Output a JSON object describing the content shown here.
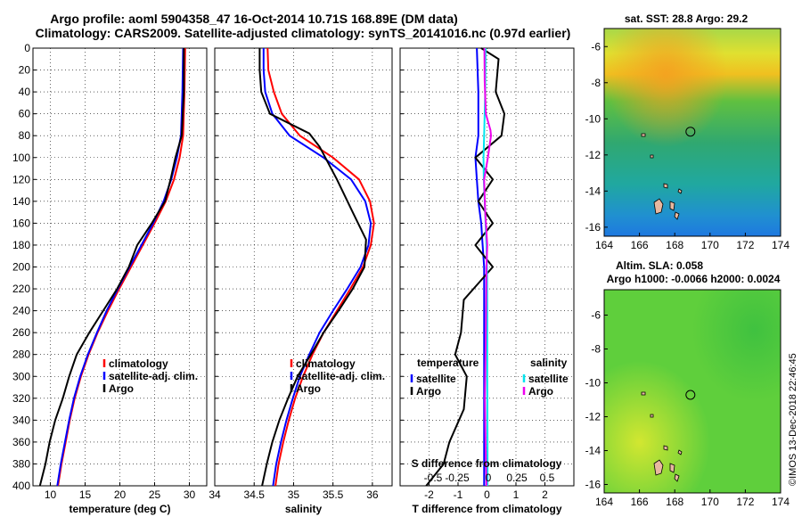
{
  "header": {
    "line1": "Argo profile: aoml 5904358_47 16-Oct-2014 10.71S 168.89E (DM data)",
    "line2": "Climatology: CARS2009. Satellite-adjusted climatology: synTS_20141016.nc (0.97d earlier)"
  },
  "credit": "©IMOS 13-Dec-2018 22:46:45",
  "colors": {
    "climatology": "#ff0000",
    "satellite": "#0000ff",
    "argo": "#000000",
    "salinity_satellite": "#00e5ee",
    "salinity_argo": "#ee00ee"
  },
  "chart_data": [
    {
      "id": "temperature",
      "type": "line",
      "xlabel": "temperature (deg C)",
      "xlim": [
        7.5,
        32.5
      ],
      "xticks": [
        10,
        15,
        20,
        25,
        30
      ],
      "ylabel": "depth",
      "ylim": [
        0,
        400
      ],
      "yticks": [
        0,
        20,
        40,
        60,
        80,
        100,
        120,
        140,
        160,
        180,
        200,
        220,
        240,
        260,
        280,
        300,
        320,
        340,
        360,
        380,
        400
      ],
      "legend": [
        "climatology",
        "satellite-adj. clim.",
        "Argo"
      ],
      "series": [
        {
          "name": "climatology",
          "color": "#ff0000",
          "points": [
            [
              29.4,
              0
            ],
            [
              29.3,
              40
            ],
            [
              29.1,
              80
            ],
            [
              28.6,
              100
            ],
            [
              27.8,
              120
            ],
            [
              26.6,
              140
            ],
            [
              25.0,
              160
            ],
            [
              23.3,
              180
            ],
            [
              21.6,
              200
            ],
            [
              19.9,
              220
            ],
            [
              18.3,
              240
            ],
            [
              16.8,
              260
            ],
            [
              15.5,
              280
            ],
            [
              14.4,
              300
            ],
            [
              13.5,
              320
            ],
            [
              12.8,
              340
            ],
            [
              12.2,
              360
            ],
            [
              11.6,
              380
            ],
            [
              11.1,
              400
            ]
          ]
        },
        {
          "name": "satellite-adj. clim.",
          "color": "#0000ff",
          "points": [
            [
              29.1,
              0
            ],
            [
              29.0,
              40
            ],
            [
              28.8,
              80
            ],
            [
              28.2,
              100
            ],
            [
              27.4,
              120
            ],
            [
              26.3,
              140
            ],
            [
              24.8,
              160
            ],
            [
              23.1,
              180
            ],
            [
              21.4,
              200
            ],
            [
              19.7,
              220
            ],
            [
              18.1,
              240
            ],
            [
              16.7,
              260
            ],
            [
              15.4,
              280
            ],
            [
              14.3,
              300
            ],
            [
              13.4,
              320
            ],
            [
              12.7,
              340
            ],
            [
              12.1,
              360
            ],
            [
              11.5,
              380
            ],
            [
              11.0,
              400
            ]
          ]
        },
        {
          "name": "Argo",
          "color": "#000000",
          "points": [
            [
              29.2,
              0
            ],
            [
              29.2,
              40
            ],
            [
              28.9,
              80
            ],
            [
              28.0,
              100
            ],
            [
              27.3,
              120
            ],
            [
              26.5,
              140
            ],
            [
              24.6,
              160
            ],
            [
              22.5,
              180
            ],
            [
              21.3,
              200
            ],
            [
              19.6,
              220
            ],
            [
              17.6,
              240
            ],
            [
              15.6,
              260
            ],
            [
              13.8,
              280
            ],
            [
              12.7,
              300
            ],
            [
              11.8,
              320
            ],
            [
              10.7,
              340
            ],
            [
              9.9,
              360
            ],
            [
              9.3,
              380
            ],
            [
              8.5,
              400
            ]
          ]
        }
      ]
    },
    {
      "id": "salinity",
      "type": "line",
      "xlabel": "salinity",
      "xlim": [
        34.0,
        36.25
      ],
      "xticks": [
        34,
        34.5,
        35,
        35.5,
        36
      ],
      "ylim": [
        0,
        400
      ],
      "legend": [
        "climatology",
        "satellite-adj. clim.",
        "Argo"
      ],
      "series": [
        {
          "name": "climatology",
          "color": "#ff0000",
          "points": [
            [
              34.67,
              0
            ],
            [
              34.68,
              20
            ],
            [
              34.75,
              40
            ],
            [
              34.85,
              60
            ],
            [
              35.08,
              80
            ],
            [
              35.5,
              100
            ],
            [
              35.83,
              120
            ],
            [
              35.97,
              140
            ],
            [
              36.02,
              160
            ],
            [
              35.98,
              180
            ],
            [
              35.88,
              200
            ],
            [
              35.72,
              220
            ],
            [
              35.55,
              240
            ],
            [
              35.38,
              260
            ],
            [
              35.24,
              280
            ],
            [
              35.12,
              300
            ],
            [
              35.02,
              320
            ],
            [
              34.94,
              340
            ],
            [
              34.87,
              360
            ],
            [
              34.81,
              380
            ],
            [
              34.77,
              400
            ]
          ]
        },
        {
          "name": "satellite-adj. clim.",
          "color": "#0000ff",
          "points": [
            [
              34.62,
              0
            ],
            [
              34.62,
              20
            ],
            [
              34.64,
              40
            ],
            [
              34.73,
              60
            ],
            [
              34.95,
              80
            ],
            [
              35.38,
              100
            ],
            [
              35.73,
              120
            ],
            [
              35.91,
              140
            ],
            [
              35.98,
              160
            ],
            [
              35.95,
              180
            ],
            [
              35.85,
              200
            ],
            [
              35.68,
              220
            ],
            [
              35.5,
              240
            ],
            [
              35.33,
              260
            ],
            [
              35.2,
              280
            ],
            [
              35.08,
              300
            ],
            [
              34.99,
              320
            ],
            [
              34.91,
              340
            ],
            [
              34.84,
              360
            ],
            [
              34.78,
              380
            ],
            [
              34.74,
              400
            ]
          ]
        },
        {
          "name": "Argo",
          "color": "#000000",
          "points": [
            [
              34.57,
              0
            ],
            [
              34.57,
              20
            ],
            [
              34.59,
              40
            ],
            [
              34.7,
              60
            ],
            [
              35.2,
              78
            ],
            [
              35.33,
              90
            ],
            [
              35.55,
              120
            ],
            [
              35.75,
              150
            ],
            [
              35.92,
              175
            ],
            [
              35.9,
              200
            ],
            [
              35.75,
              220
            ],
            [
              35.57,
              240
            ],
            [
              35.38,
              260
            ],
            [
              35.22,
              280
            ],
            [
              35.05,
              300
            ],
            [
              34.93,
              320
            ],
            [
              34.82,
              340
            ],
            [
              34.73,
              360
            ],
            [
              34.66,
              380
            ],
            [
              34.6,
              400
            ]
          ]
        }
      ]
    },
    {
      "id": "difference",
      "type": "line",
      "xlabel": "T difference from climatology",
      "xlim": [
        -3,
        3
      ],
      "xticks": [
        -2,
        -1,
        0,
        1,
        2
      ],
      "xlabel_top": "S difference from climatology",
      "xticks_top": [
        "-0.5",
        "-0.25",
        "0",
        "0.25",
        "0.5"
      ],
      "ylim": [
        0,
        400
      ],
      "legend_temperature_title": "temperature",
      "legend_salinity_title": "salinity",
      "legend_temperature": [
        "satellite",
        "Argo"
      ],
      "legend_salinity": [
        "satellite",
        "Argo"
      ],
      "series": [
        {
          "name": "temperature satellite",
          "color": "#0000ff",
          "points": [
            [
              -0.35,
              0
            ],
            [
              -0.3,
              40
            ],
            [
              -0.3,
              80
            ],
            [
              -0.4,
              100
            ],
            [
              -0.35,
              120
            ],
            [
              -0.3,
              140
            ],
            [
              -0.2,
              160
            ],
            [
              -0.15,
              180
            ],
            [
              -0.1,
              200
            ],
            [
              -0.1,
              220
            ],
            [
              -0.1,
              260
            ],
            [
              -0.1,
              300
            ],
            [
              -0.1,
              360
            ],
            [
              -0.1,
              400
            ]
          ]
        },
        {
          "name": "temperature Argo",
          "color": "#000000",
          "points": [
            [
              -0.2,
              0
            ],
            [
              0.4,
              10
            ],
            [
              0.3,
              40
            ],
            [
              0.6,
              60
            ],
            [
              0.5,
              80
            ],
            [
              -0.4,
              100
            ],
            [
              0.2,
              120
            ],
            [
              -0.3,
              140
            ],
            [
              0.2,
              160
            ],
            [
              -0.4,
              180
            ],
            [
              0.2,
              200
            ],
            [
              -0.3,
              215
            ],
            [
              -0.8,
              230
            ],
            [
              -0.9,
              260
            ],
            [
              -1.1,
              280
            ],
            [
              -0.7,
              300
            ],
            [
              -0.8,
              330
            ],
            [
              -1.3,
              360
            ],
            [
              -1.5,
              380
            ],
            [
              -2.1,
              400
            ]
          ]
        },
        {
          "name": "salinity satellite",
          "color": "#00e5ee",
          "points": [
            [
              -0.05,
              0
            ],
            [
              -0.06,
              40
            ],
            [
              -0.1,
              80
            ],
            [
              -0.12,
              100
            ],
            [
              -0.11,
              120
            ],
            [
              -0.08,
              140
            ],
            [
              -0.05,
              160
            ],
            [
              -0.02,
              180
            ],
            [
              0.0,
              200
            ],
            [
              0.01,
              240
            ],
            [
              0.01,
              300
            ],
            [
              0.02,
              360
            ],
            [
              0.02,
              400
            ]
          ]
        },
        {
          "name": "salinity Argo",
          "color": "#ee00ee",
          "points": [
            [
              -0.09,
              0
            ],
            [
              -0.08,
              30
            ],
            [
              -0.04,
              60
            ],
            [
              0.12,
              75
            ],
            [
              0.14,
              80
            ],
            [
              0.03,
              100
            ],
            [
              -0.1,
              120
            ],
            [
              -0.06,
              150
            ],
            [
              0.01,
              180
            ],
            [
              -0.02,
              200
            ],
            [
              -0.03,
              240
            ],
            [
              -0.05,
              280
            ],
            [
              -0.07,
              320
            ],
            [
              -0.05,
              360
            ],
            [
              -0.02,
              400
            ]
          ]
        }
      ]
    },
    {
      "id": "sst_map",
      "type": "heatmap",
      "title": "sat. SST: 28.8 Argo: 29.2",
      "xlim": [
        164,
        174
      ],
      "xticks": [
        164,
        166,
        168,
        170,
        172,
        174
      ],
      "ylim": [
        -16.5,
        -5
      ],
      "yticks": [
        -6,
        -8,
        -10,
        -12,
        -14,
        -16
      ],
      "argo_position": [
        168.89,
        -10.71
      ]
    },
    {
      "id": "sla_map",
      "type": "heatmap",
      "title_line1": "Altim. SLA: 0.058",
      "title_line2": "Argo h1000: -0.0066 h2000: 0.0024",
      "xlim": [
        164,
        174
      ],
      "xticks": [
        164,
        166,
        168,
        170,
        172,
        174
      ],
      "ylim": [
        -16.5,
        -4.5
      ],
      "yticks": [
        -6,
        -8,
        -10,
        -12,
        -14,
        -16
      ],
      "argo_position": [
        168.89,
        -10.71
      ]
    }
  ]
}
